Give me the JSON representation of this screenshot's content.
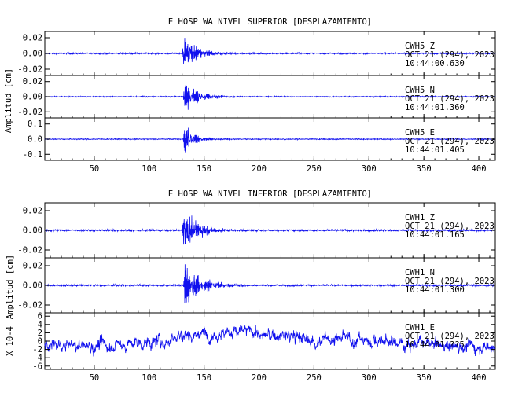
{
  "chart_data": [
    {
      "type": "line",
      "title": "E HOSP WA NIVEL SUPERIOR [DESPLAZAMIENTO]",
      "ylabel": "Amplitud [cm]",
      "xlim": [
        5,
        415
      ],
      "x_ticks": [
        50,
        100,
        150,
        200,
        250,
        300,
        350,
        400
      ],
      "x_tick_labels": [
        "50",
        "100",
        "150",
        "200",
        "250",
        "300",
        "350",
        "400"
      ],
      "grid": false,
      "color": "#1010ee",
      "traces": [
        {
          "station": "CWH5",
          "component": "Z",
          "date": "OCT 21 (294), 2023",
          "time": "10:44:00.630",
          "ylim": [
            -0.028,
            0.028
          ],
          "y_ticks": [
            -0.02,
            0.0,
            0.02
          ],
          "y_tick_labels": [
            "-0.02",
            "0.00",
            "0.02"
          ],
          "onset": 130,
          "peak": 0.026,
          "decay": 13,
          "noise": 0.0008,
          "freq": 2.2
        },
        {
          "station": "CWH5",
          "component": "N",
          "date": "OCT 21 (294), 2023",
          "time": "10:44:01.360",
          "ylim": [
            -0.028,
            0.028
          ],
          "y_ticks": [
            -0.02,
            0.0,
            0.02
          ],
          "y_tick_labels": [
            "-0.02",
            "0.00",
            "0.02"
          ],
          "onset": 131,
          "peak": 0.024,
          "decay": 13,
          "noise": 0.0006,
          "freq": 2.0
        },
        {
          "station": "CWH5",
          "component": "E",
          "date": "OCT 21 (294), 2023",
          "time": "10:44:01.405",
          "ylim": [
            -0.14,
            0.14
          ],
          "y_ticks": [
            -0.1,
            0.0,
            0.1
          ],
          "y_tick_labels": [
            "-0.1",
            "0.0",
            "0.1"
          ],
          "onset": 131,
          "peak": 0.13,
          "decay": 9,
          "noise": 0.003,
          "freq": 2.0
        }
      ]
    },
    {
      "type": "line",
      "title": "E HOSP WA NIVEL INFERIOR [DESPLAZAMIENTO]",
      "ylabel": "Amplitud [cm]",
      "xlim": [
        5,
        415
      ],
      "x_ticks": [
        50,
        100,
        150,
        200,
        250,
        300,
        350,
        400
      ],
      "x_tick_labels": [
        "50",
        "100",
        "150",
        "200",
        "250",
        "300",
        "350",
        "400"
      ],
      "grid": false,
      "color": "#1010ee",
      "traces": [
        {
          "station": "CWH1",
          "component": "Z",
          "date": "OCT 21 (294), 2023",
          "time": "10:44:01.165",
          "ylim": [
            -0.028,
            0.028
          ],
          "y_ticks": [
            -0.02,
            0.0,
            0.02
          ],
          "y_tick_labels": [
            "-0.02",
            "0.00",
            "0.02"
          ],
          "onset": 130,
          "peak": 0.026,
          "decay": 14,
          "noise": 0.0008,
          "freq": 2.2
        },
        {
          "station": "CWH1",
          "component": "N",
          "date": "OCT 21 (294), 2023",
          "time": "10:44:01.300",
          "ylim": [
            -0.028,
            0.028
          ],
          "y_ticks": [
            -0.02,
            0.0,
            0.02
          ],
          "y_tick_labels": [
            "-0.02",
            "0.00",
            "0.02"
          ],
          "onset": 131,
          "peak": 0.026,
          "decay": 16,
          "noise": 0.0008,
          "freq": 2.0
        },
        {
          "station": "CWH1",
          "component": "E",
          "date": "OCT 21 (294), 2023",
          "time": "10:44:01.??5",
          "ylabel": "X 10-4",
          "ylim": [
            -6.8,
            6.8
          ],
          "y_ticks": [
            -6,
            -4,
            -2,
            0,
            2,
            4,
            6
          ],
          "y_tick_labels": [
            "-6",
            "-4",
            "-2",
            "0",
            "2",
            "4",
            "6"
          ],
          "onset": 131,
          "peak": 0,
          "decay": 10,
          "noise": 2.1,
          "freq": 1.2
        }
      ]
    }
  ]
}
